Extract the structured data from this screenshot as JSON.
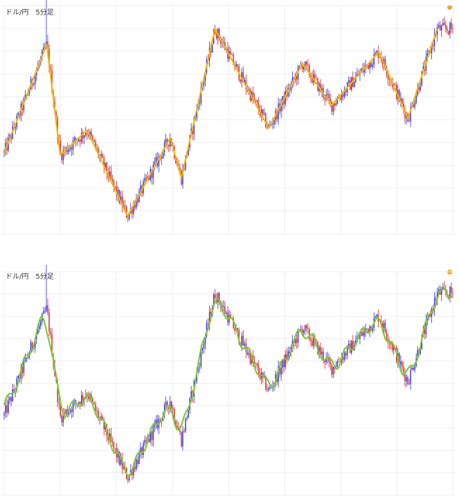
{
  "charts": [
    {
      "title": "ドル/円　5分足",
      "overlay": "zigzag"
    },
    {
      "title": "ドル/円　5分足",
      "overlay": "smooth"
    }
  ],
  "colors": {
    "up": "#2a2ad6",
    "down": "#cc1f1f",
    "zigzag": "#f5b400",
    "smooth": "#7ec832",
    "grid": "#eceef2",
    "info_icon": "#f5a623"
  },
  "icon": "info-icon",
  "chart_data": [
    {
      "type": "candlestick",
      "title": "ドル/円　5分足",
      "overlay": "zigzag",
      "grid": true,
      "zigzag": [
        [
          0,
          0.35
        ],
        [
          0.095,
          0.92
        ],
        [
          0.125,
          0.34
        ],
        [
          0.185,
          0.47
        ],
        [
          0.275,
          0.02
        ],
        [
          0.37,
          0.43
        ],
        [
          0.395,
          0.22
        ],
        [
          0.47,
          1.0
        ],
        [
          0.59,
          0.48
        ],
        [
          0.665,
          0.82
        ],
        [
          0.73,
          0.6
        ],
        [
          0.835,
          0.88
        ],
        [
          0.9,
          0.53
        ],
        [
          0.965,
          1.0
        ]
      ]
    },
    {
      "type": "candlestick",
      "title": "ドル/円　5分足",
      "overlay": "smooth",
      "grid": true
    }
  ]
}
